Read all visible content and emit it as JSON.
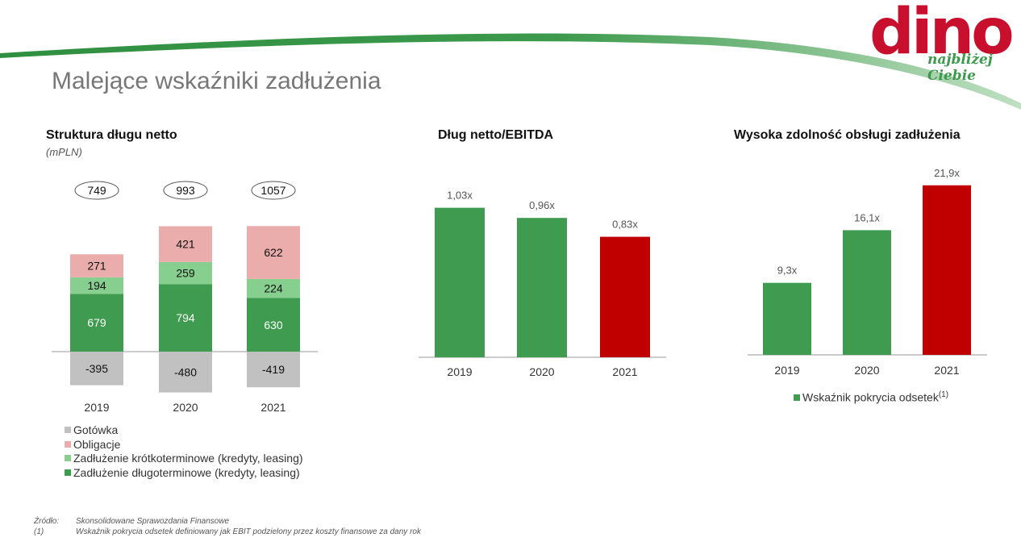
{
  "logo": {
    "word": "dino",
    "tagline": "najbliżej Ciebie"
  },
  "title": "Malejące wskaźniki zadłużenia",
  "colors": {
    "long_term": "#3e9b50",
    "short_term": "#86cf8e",
    "bonds": "#eaadab",
    "cash": "#c1c1c1",
    "highlight": "#c00000",
    "swoosh": "#3d9a4d"
  },
  "chart_data": [
    {
      "type": "bar",
      "stacked": true,
      "title": "Struktura długu netto",
      "subtitle": "(mPLN)",
      "categories": [
        "2019",
        "2020",
        "2021"
      ],
      "totals": [
        "749",
        "993",
        "1057"
      ],
      "series": [
        {
          "name": "Zadłużenie długoterminowe (kredyty, leasing)",
          "values": [
            679,
            794,
            630
          ],
          "labels": [
            "679",
            "794",
            "630"
          ]
        },
        {
          "name": "Zadłużenie krótkoterminowe (kredyty, leasing)",
          "values": [
            194,
            259,
            224
          ],
          "labels": [
            "194",
            "259",
            "224"
          ]
        },
        {
          "name": "Obligacje",
          "values": [
            271,
            421,
            622
          ],
          "labels": [
            "271",
            "421",
            "622"
          ]
        },
        {
          "name": "Gotówka",
          "values": [
            -395,
            -480,
            -419
          ],
          "labels": [
            "-395",
            "-480",
            "-419"
          ]
        }
      ],
      "legend": [
        "Gotówka",
        "Obligacje",
        "Zadłużenie krótkoterminowe (kredyty, leasing)",
        "Zadłużenie długoterminowe (kredyty, leasing)"
      ]
    },
    {
      "type": "bar",
      "title": "Dług netto/EBITDA",
      "categories": [
        "2019",
        "2020",
        "2021"
      ],
      "values": [
        1.03,
        0.96,
        0.83
      ],
      "labels": [
        "1,03x",
        "0,96x",
        "0,83x"
      ],
      "highlight_index": 2
    },
    {
      "type": "bar",
      "title": "Wysoka zdolność obsługi zadłużenia",
      "categories": [
        "2019",
        "2020",
        "2021"
      ],
      "values": [
        9.3,
        16.1,
        21.9
      ],
      "labels": [
        "9,3x",
        "16,1x",
        "21,9x"
      ],
      "highlight_index": 2,
      "legend_label": "Wskaźnik pokrycia odsetek",
      "legend_note": "(1)"
    }
  ],
  "footnotes": [
    {
      "key": "Źródło:",
      "text": "Skonsolidowane Sprawozdania Finansowe"
    },
    {
      "key": "(1)",
      "text": "Wskaźnik pokrycia odsetek definiowany jak EBIT podzielony przez koszty finansowe za dany rok"
    }
  ]
}
